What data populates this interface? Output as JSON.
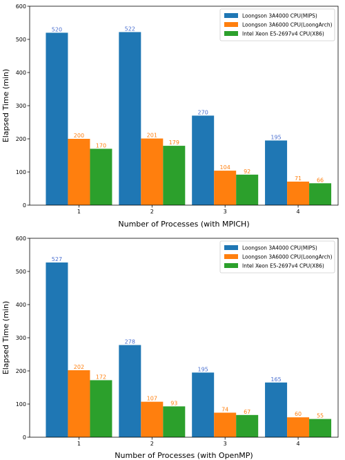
{
  "chart_data": [
    {
      "type": "bar",
      "categories": [
        "1",
        "2",
        "3",
        "4"
      ],
      "series": [
        {
          "name": "Loongson 3A4000 CPU(MIPS)",
          "values": [
            520,
            522,
            270,
            195
          ],
          "color": "#1f77b4",
          "label_color": "#4a6fd0"
        },
        {
          "name": "Loongson 3A6000 CPU(LoongArch)",
          "values": [
            200,
            201,
            104,
            71
          ],
          "color": "#ff7f0e",
          "label_color": "#ff7f0e"
        },
        {
          "name": "Intel Xeon E5-2697v4 CPU(X86)",
          "values": [
            170,
            179,
            92,
            66
          ],
          "color": "#2ca02c",
          "label_color": "#ff7f0e"
        }
      ],
      "xlabel": "Number of Processes (with MPICH)",
      "ylabel": "Elapsed Time (min)",
      "ylim": [
        0,
        600
      ],
      "yticks": [
        0,
        100,
        200,
        300,
        400,
        500,
        600
      ],
      "legend": "top-right",
      "grid": false
    },
    {
      "type": "bar",
      "categories": [
        "1",
        "2",
        "3",
        "4"
      ],
      "series": [
        {
          "name": "Loongson 3A4000 CPU(MIPS)",
          "values": [
            527,
            278,
            195,
            165
          ],
          "color": "#1f77b4",
          "label_color": "#4a6fd0"
        },
        {
          "name": "Loongson 3A6000 CPU(LoongArch)",
          "values": [
            202,
            107,
            74,
            60
          ],
          "color": "#ff7f0e",
          "label_color": "#ff7f0e"
        },
        {
          "name": "Intel Xeon E5-2697v4 CPU(X86)",
          "values": [
            172,
            93,
            67,
            55
          ],
          "color": "#2ca02c",
          "label_color": "#ff7f0e"
        }
      ],
      "xlabel": "Number of Processes (with OpenMP)",
      "ylabel": "Elapsed Time (min)",
      "ylim": [
        0,
        600
      ],
      "yticks": [
        0,
        100,
        200,
        300,
        400,
        500,
        600
      ],
      "legend": "top-right",
      "grid": false
    }
  ]
}
